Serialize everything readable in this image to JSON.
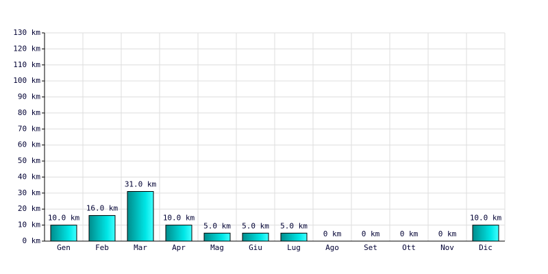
{
  "chart_data": {
    "type": "bar",
    "categories": [
      "Gen",
      "Feb",
      "Mar",
      "Apr",
      "Mag",
      "Giu",
      "Lug",
      "Ago",
      "Set",
      "Ott",
      "Nov",
      "Dic"
    ],
    "values": [
      10,
      16,
      31,
      10,
      5,
      5,
      5,
      0,
      0,
      0,
      0,
      10
    ],
    "value_labels": [
      "10.0 km",
      "16.0 km",
      "31.0 km",
      "10.0 km",
      "5.0 km",
      "5.0 km",
      "5.0 km",
      "0 km",
      "0 km",
      "0 km",
      "0 km",
      "10.0 km"
    ],
    "ylim": [
      0,
      130
    ],
    "yticks": [
      {
        "value": 0,
        "label": "0 km"
      },
      {
        "value": 10,
        "label": "10 km"
      },
      {
        "value": 20,
        "label": "20 km"
      },
      {
        "value": 30,
        "label": "30 km"
      },
      {
        "value": 40,
        "label": "40 km"
      },
      {
        "value": 50,
        "label": "50 km"
      },
      {
        "value": 60,
        "label": "60 km"
      },
      {
        "value": 70,
        "label": "70 km"
      },
      {
        "value": 80,
        "label": "80 km"
      },
      {
        "value": 90,
        "label": "90 km"
      },
      {
        "value": 100,
        "label": "100 km"
      },
      {
        "value": 110,
        "label": "110 km"
      },
      {
        "value": 120,
        "label": "120 km"
      },
      {
        "value": 130,
        "label": "130 km"
      }
    ],
    "grid": true
  }
}
